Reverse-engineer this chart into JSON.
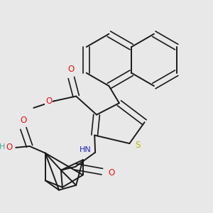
{
  "bg": "#e8e8e8",
  "bond_color": "#1a1a1a",
  "colors": {
    "O": "#ee1111",
    "N": "#2222cc",
    "S": "#bbbb00",
    "C": "#1a1a1a",
    "H": "#44aaaa"
  },
  "lw": 1.4,
  "lw_thin": 1.2,
  "sep": 0.012
}
